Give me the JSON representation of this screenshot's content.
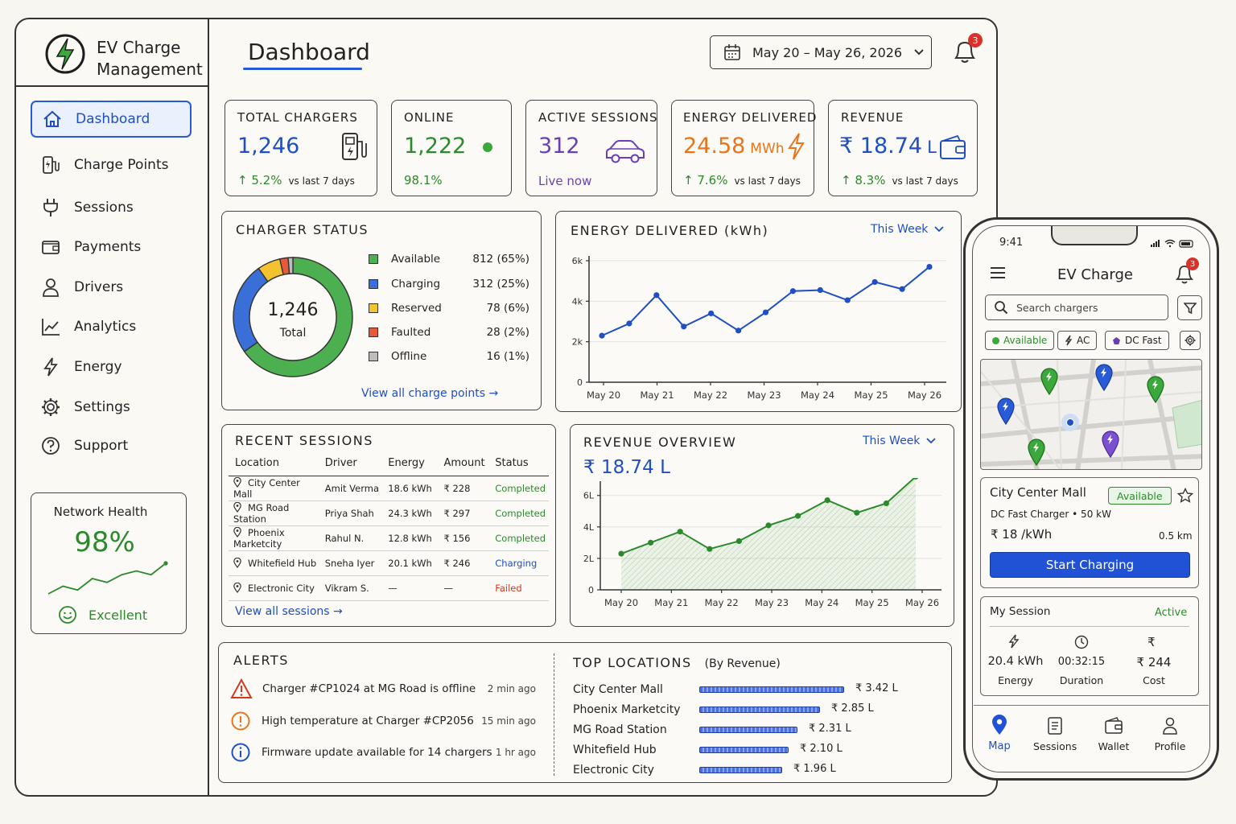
{
  "app": {
    "title_line1": "EV Charge",
    "title_line2": "Management",
    "page_title": "Dashboard"
  },
  "header": {
    "date_range": "May 20 – May 26, 2026",
    "notification_count": "3"
  },
  "sidebar": {
    "items": [
      {
        "label": "Dashboard",
        "icon": "home-icon",
        "active": true
      },
      {
        "label": "Charge Points",
        "icon": "charge-point-icon"
      },
      {
        "label": "Sessions",
        "icon": "plug-icon"
      },
      {
        "label": "Payments",
        "icon": "wallet-icon"
      },
      {
        "label": "Drivers",
        "icon": "user-icon"
      },
      {
        "label": "Analytics",
        "icon": "chart-line-icon"
      },
      {
        "label": "Energy",
        "icon": "lightning-icon"
      },
      {
        "label": "Settings",
        "icon": "gear-icon"
      },
      {
        "label": "Support",
        "icon": "help-icon"
      }
    ],
    "network_health": {
      "title": "Network Health",
      "value": "98%",
      "status": "Excellent",
      "trend": [
        3,
        5,
        4,
        7,
        6,
        8,
        9,
        8,
        11
      ],
      "colors": {
        "line": "#2c8a2c"
      }
    }
  },
  "kpis": {
    "total_chargers": {
      "label": "TOTAL CHARGERS",
      "value": "1,246",
      "change": "↑ 5.2%",
      "change_suffix": "vs last 7 days"
    },
    "online": {
      "label": "ONLINE",
      "value": "1,222",
      "sub": "98.1%"
    },
    "active_sessions": {
      "label": "ACTIVE SESSIONS",
      "value": "312",
      "sub": "Live now"
    },
    "energy_delivered": {
      "label": "ENERGY DELIVERED",
      "value": "24.58",
      "unit": "MWh",
      "change": "↑ 7.6%",
      "change_suffix": "vs last 7 days"
    },
    "revenue": {
      "label": "REVENUE",
      "value": "₹ 18.74",
      "unit": "L",
      "change": "↑ 8.3%",
      "change_suffix": "vs last 7 days"
    }
  },
  "charger_status": {
    "title": "CHARGER STATUS",
    "center_value": "1,246",
    "center_label": "Total",
    "items": [
      {
        "label": "Available",
        "value": "812",
        "pct": "(65%)",
        "count": 812,
        "color": "#4caf50"
      },
      {
        "label": "Charging",
        "value": "312",
        "pct": "(25%)",
        "count": 312,
        "color": "#3b6fd8"
      },
      {
        "label": "Reserved",
        "value": "78",
        "pct": "(6%)",
        "count": 78,
        "color": "#f2c230"
      },
      {
        "label": "Faulted",
        "value": "28",
        "pct": "(2%)",
        "count": 28,
        "color": "#e8593a"
      },
      {
        "label": "Offline",
        "value": "16",
        "pct": "(1%)",
        "count": 16,
        "color": "#bdbdbd"
      }
    ],
    "link": "View all charge points →"
  },
  "chart_data": [
    {
      "type": "line",
      "title": "ENERGY DELIVERED (kWh)",
      "period": "This Week",
      "x_ticks": [
        "May 20",
        "May 21",
        "May 22",
        "May 23",
        "May 24",
        "May 25",
        "May 26"
      ],
      "y_ticks": [
        "0",
        "2k",
        "4k",
        "6k"
      ],
      "ylim": [
        0,
        6000
      ],
      "values": [
        2300,
        2900,
        4300,
        2750,
        3400,
        2550,
        3450,
        4500,
        4550,
        4050,
        4950,
        4600,
        5700
      ],
      "color": "#1f4fc2"
    },
    {
      "type": "area",
      "title": "REVENUE OVERVIEW",
      "period": "This Week",
      "total": "₹ 18.74 L",
      "x_ticks": [
        "May 20",
        "May 21",
        "May 22",
        "May 23",
        "May 24",
        "May 25",
        "May 26"
      ],
      "y_ticks": [
        "0",
        "2L",
        "4L",
        "6L"
      ],
      "ylim": [
        0,
        6.6
      ],
      "values": [
        2.3,
        3.0,
        3.7,
        2.6,
        3.1,
        4.1,
        4.7,
        5.7,
        4.9,
        5.5,
        7.2
      ],
      "color": "#2c8a2c"
    }
  ],
  "recent_sessions": {
    "title": "RECENT SESSIONS",
    "columns": [
      "Location",
      "Driver",
      "Energy",
      "Amount",
      "Status"
    ],
    "rows": [
      {
        "location": "City Center Mall",
        "driver": "Amit Verma",
        "energy": "18.6 kWh",
        "amount": "₹ 228",
        "status": "Completed",
        "status_color": "#2c8a2c"
      },
      {
        "location": "MG Road Station",
        "driver": "Priya Shah",
        "energy": "24.3 kWh",
        "amount": "₹ 297",
        "status": "Completed",
        "status_color": "#2c8a2c"
      },
      {
        "location": "Phoenix Marketcity",
        "driver": "Rahul N.",
        "energy": "12.8 kWh",
        "amount": "₹ 156",
        "status": "Completed",
        "status_color": "#2c8a2c"
      },
      {
        "location": "Whitefield Hub",
        "driver": "Sneha Iyer",
        "energy": "20.1 kWh",
        "amount": "₹ 246",
        "status": "Charging",
        "status_color": "#1f4fc2"
      },
      {
        "location": "Electronic City",
        "driver": "Vikram S.",
        "energy": "—",
        "amount": "—",
        "status": "Failed",
        "status_color": "#d23a1f"
      }
    ],
    "link": "View all sessions →"
  },
  "alerts": {
    "title": "ALERTS",
    "items": [
      {
        "icon": "warning-icon",
        "text": "Charger #CP1024 at MG Road is offline",
        "ago": "2 min ago",
        "color": "#d23a1f"
      },
      {
        "icon": "exclamation-icon",
        "text": "High temperature at Charger #CP2056",
        "ago": "15 min ago",
        "color": "#e8741b"
      },
      {
        "icon": "info-icon",
        "text": "Firmware update available for 14 chargers",
        "ago": "1 hr ago",
        "color": "#1f4fc2"
      }
    ]
  },
  "top_locations": {
    "title": "TOP LOCATIONS",
    "subtitle": "(By Revenue)",
    "items": [
      {
        "name": "City Center Mall",
        "value": "₹ 3.42 L",
        "amount": 3.42
      },
      {
        "name": "Phoenix Marketcity",
        "value": "₹ 2.85 L",
        "amount": 2.85
      },
      {
        "name": "MG Road Station",
        "value": "₹ 2.31 L",
        "amount": 2.31
      },
      {
        "name": "Whitefield Hub",
        "value": "₹ 2.10 L",
        "amount": 2.1
      },
      {
        "name": "Electronic City",
        "value": "₹ 1.96 L",
        "amount": 1.96
      }
    ]
  },
  "phone": {
    "time": "9:41",
    "title": "EV Charge",
    "notification_count": "3",
    "search_placeholder": "Search chargers",
    "chips": [
      "Available",
      "AC",
      "DC Fast"
    ],
    "station": {
      "name": "City Center Mall",
      "badge": "Available",
      "type": "DC Fast Charger • 50 kW",
      "price": "₹ 18 /kWh",
      "distance": "0.5 km",
      "cta": "Start Charging"
    },
    "session": {
      "title": "My Session",
      "status": "Active",
      "energy_value": "20.4 kWh",
      "energy_label": "Energy",
      "duration_value": "00:32:15",
      "duration_label": "Duration",
      "cost_value": "₹ 244",
      "cost_label": "Cost"
    },
    "tabs": [
      {
        "label": "Map",
        "icon": "map-pin-icon",
        "active": true
      },
      {
        "label": "Sessions",
        "icon": "list-icon"
      },
      {
        "label": "Wallet",
        "icon": "wallet-icon"
      },
      {
        "label": "Profile",
        "icon": "user-icon"
      }
    ]
  }
}
